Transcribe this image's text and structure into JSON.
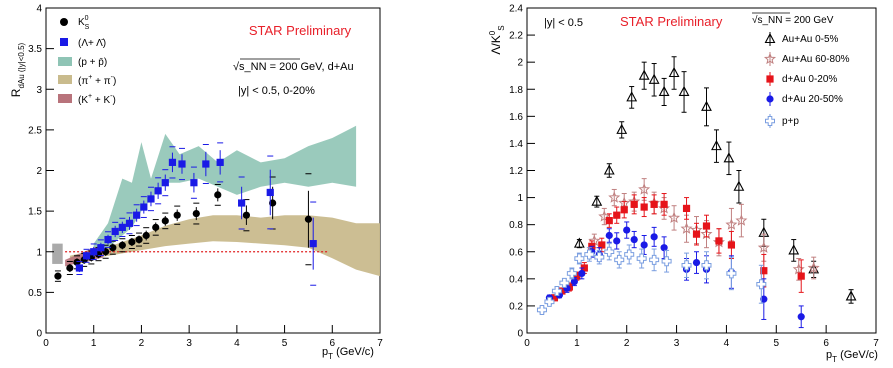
{
  "colors": {
    "star_red": "#e8202a",
    "kaon": "#000000",
    "lambda_blue": "#1a1ae6",
    "proton_band": "#8fc4b5",
    "pion_band": "#c9bb8d",
    "kaon_band": "#b8737b",
    "aa_central": "#000000",
    "aa_peripheral": "#c08080",
    "dau_central": "#e6141a",
    "dau_peripheral": "#1a1ae6",
    "pp": "#7a9ee0",
    "unity_line": "#e02020"
  },
  "chart_data": [
    {
      "type": "scatter",
      "title": "STAR Preliminary",
      "xlabel_main": "p",
      "xlabel_sub": "T",
      "xlabel_unit": " (GeV/c)",
      "ylabel_main": "R",
      "ylabel_sub": "dAu (|y|<0.5)",
      "xlim": [
        0,
        7
      ],
      "ylim": [
        0,
        4
      ],
      "xticks": [
        0,
        1,
        2,
        3,
        4,
        5,
        6,
        7
      ],
      "yticks": [
        0,
        0.5,
        1,
        1.5,
        2,
        2.5,
        3,
        3.5,
        4
      ],
      "annotations": [
        "√s_NN = 200 GeV, d+Au",
        "|y| < 0.5, 0-20%"
      ],
      "legend_position": "top-left",
      "reference_line_y": 1,
      "series": [
        {
          "name": "K⁰_S",
          "legend_main": "K",
          "legend_sup": "0",
          "legend_sub": "S",
          "marker": "circle",
          "color": "#000000",
          "x": [
            0.25,
            0.5,
            0.65,
            0.8,
            0.95,
            1.1,
            1.25,
            1.4,
            1.6,
            1.8,
            1.95,
            2.1,
            2.3,
            2.5,
            2.75,
            3.15,
            3.6,
            4.2,
            4.75,
            5.5
          ],
          "y": [
            0.7,
            0.8,
            0.87,
            0.9,
            0.93,
            0.97,
            1.0,
            1.05,
            1.08,
            1.12,
            1.15,
            1.2,
            1.3,
            1.38,
            1.45,
            1.47,
            1.7,
            1.45,
            1.6,
            1.4
          ],
          "err": [
            0.04,
            0.05,
            0.05,
            0.05,
            0.05,
            0.05,
            0.05,
            0.05,
            0.05,
            0.05,
            0.05,
            0.06,
            0.06,
            0.06,
            0.07,
            0.08,
            0.08,
            0.12,
            0.2,
            0.35
          ]
        },
        {
          "name": "(Λ+Λ̄)",
          "legend_main": "(Λ+ Λ̄)",
          "marker": "square",
          "color": "#1a1ae6",
          "x": [
            0.7,
            0.85,
            1.0,
            1.15,
            1.3,
            1.45,
            1.6,
            1.75,
            1.9,
            2.05,
            2.2,
            2.35,
            2.5,
            2.65,
            2.85,
            3.1,
            3.35,
            3.65,
            4.1,
            4.7,
            5.6
          ],
          "y": [
            0.8,
            0.95,
            1.0,
            1.05,
            1.15,
            1.25,
            1.3,
            1.35,
            1.45,
            1.55,
            1.65,
            1.75,
            1.85,
            2.1,
            2.08,
            1.85,
            2.08,
            2.1,
            1.6,
            1.73,
            1.1
          ],
          "err": [
            0.05,
            0.05,
            0.06,
            0.06,
            0.06,
            0.07,
            0.07,
            0.08,
            0.08,
            0.08,
            0.09,
            0.1,
            0.1,
            0.12,
            0.12,
            0.12,
            0.15,
            0.15,
            0.2,
            0.28,
            0.32
          ]
        },
        {
          "name": "(p + p̄)",
          "legend_main": "(p + p̄)",
          "marker": "band",
          "color": "#8fc4b5",
          "x": [
            1.0,
            1.3,
            1.6,
            1.8,
            2.0,
            2.2,
            2.5,
            2.8,
            3.2,
            3.6,
            4.0,
            4.5,
            5.0,
            5.5,
            6.0,
            6.5
          ],
          "y_low": [
            0.95,
            1.05,
            1.2,
            1.3,
            1.5,
            1.65,
            1.85,
            1.85,
            1.9,
            1.8,
            1.7,
            1.8,
            1.85,
            1.8,
            1.85,
            1.8
          ],
          "y_high": [
            1.1,
            1.35,
            1.9,
            1.85,
            2.35,
            1.9,
            2.45,
            2.2,
            2.3,
            2.1,
            2.25,
            2.1,
            2.15,
            2.3,
            2.4,
            2.55
          ]
        },
        {
          "name": "(π⁺ + π⁻)",
          "legend_main": "(π",
          "legend_sup": "+",
          "legend_rest": " + π",
          "legend_sup2": "-",
          "legend_end": ")",
          "marker": "band",
          "color": "#c9bb8d",
          "x": [
            0.5,
            1.0,
            1.5,
            2.0,
            2.5,
            3.0,
            3.5,
            4.0,
            4.5,
            5.0,
            5.5,
            6.0,
            6.5,
            7.0
          ],
          "y_low": [
            0.88,
            0.92,
            0.97,
            1.02,
            1.07,
            1.1,
            1.13,
            1.12,
            1.1,
            1.08,
            1.05,
            0.92,
            0.78,
            0.7
          ],
          "y_high": [
            0.95,
            1.02,
            1.1,
            1.2,
            1.32,
            1.4,
            1.45,
            1.45,
            1.42,
            1.45,
            1.45,
            1.42,
            1.35,
            1.35
          ]
        },
        {
          "name": "(K⁺ + K⁻)",
          "legend_main": "(K",
          "legend_sup": "+",
          "legend_rest": " + K",
          "legend_sup2": "-",
          "legend_end": ")",
          "marker": "band",
          "color": "#b8737b",
          "x": [
            0.4,
            0.6,
            0.8,
            1.0,
            1.2
          ],
          "y_low": [
            0.82,
            0.85,
            0.87,
            0.9,
            0.93
          ],
          "y_high": [
            0.9,
            0.95,
            1.0,
            1.05,
            1.08
          ]
        }
      ],
      "sys_box": {
        "x": [
          0.13,
          0.35
        ],
        "y": [
          0.85,
          1.1
        ],
        "color": "#aaaaaa"
      }
    },
    {
      "type": "scatter",
      "title": "STAR Preliminary",
      "xlabel_main": "p",
      "xlabel_sub": "T",
      "xlabel_unit": " (GeV/c)",
      "ylabel_main": "Λ/K",
      "ylabel_sup": "0",
      "ylabel_sub": "S",
      "xlim": [
        0,
        7
      ],
      "ylim": [
        0,
        2.4
      ],
      "xticks": [
        0,
        1,
        2,
        3,
        4,
        5,
        6,
        7
      ],
      "yticks": [
        0,
        0.2,
        0.4,
        0.6,
        0.8,
        1,
        1.2,
        1.4,
        1.6,
        1.8,
        2,
        2.2,
        2.4
      ],
      "annotations": [
        "|y| < 0.5",
        "√s_NN = 200 GeV"
      ],
      "legend_position": "top-right",
      "series": [
        {
          "name": "Au+Au 0-5%",
          "marker": "open-triangle",
          "color": "#000000",
          "x": [
            1.05,
            1.4,
            1.65,
            1.9,
            2.1,
            2.35,
            2.55,
            2.75,
            2.95,
            3.15,
            3.6,
            3.8,
            4.05,
            4.25,
            4.75,
            5.35,
            5.75,
            6.5
          ],
          "y": [
            0.66,
            0.97,
            1.2,
            1.5,
            1.74,
            1.9,
            1.87,
            1.78,
            1.92,
            1.78,
            1.67,
            1.38,
            1.29,
            1.08,
            0.74,
            0.61,
            0.47,
            0.27
          ],
          "err": [
            0.03,
            0.04,
            0.05,
            0.06,
            0.08,
            0.1,
            0.12,
            0.1,
            0.12,
            0.15,
            0.14,
            0.12,
            0.12,
            0.12,
            0.1,
            0.08,
            0.06,
            0.05
          ]
        },
        {
          "name": "Au+Au 60-80%",
          "marker": "open-star",
          "color": "#c08080",
          "x": [
            1.35,
            1.55,
            1.75,
            1.95,
            2.15,
            2.35,
            2.55,
            2.75,
            2.95,
            3.2,
            3.4,
            3.6,
            3.85,
            4.1,
            4.3,
            4.75,
            5.45,
            5.75
          ],
          "y": [
            0.68,
            0.86,
            1.0,
            0.96,
            0.97,
            1.06,
            0.96,
            0.92,
            0.85,
            0.77,
            0.76,
            0.73,
            0.67,
            0.8,
            0.83,
            0.63,
            0.47,
            0.48
          ],
          "err": [
            0.05,
            0.06,
            0.06,
            0.07,
            0.07,
            0.08,
            0.08,
            0.08,
            0.09,
            0.1,
            0.1,
            0.1,
            0.1,
            0.12,
            0.12,
            0.1,
            0.08,
            0.08
          ]
        },
        {
          "name": "d+Au 0-20%",
          "marker": "square",
          "color": "#e6141a",
          "x": [
            0.55,
            0.7,
            0.85,
            1.0,
            1.15,
            1.3,
            1.5,
            1.65,
            1.8,
            1.95,
            2.15,
            2.35,
            2.55,
            2.75,
            3.2,
            3.4,
            3.6,
            3.85,
            4.1,
            4.75,
            5.5
          ],
          "y": [
            0.26,
            0.31,
            0.34,
            0.42,
            0.48,
            0.64,
            0.65,
            0.83,
            0.87,
            0.91,
            0.95,
            0.93,
            0.95,
            0.95,
            0.92,
            0.73,
            0.79,
            0.68,
            0.65,
            0.46,
            0.42
          ],
          "err": [
            0.02,
            0.02,
            0.03,
            0.03,
            0.04,
            0.04,
            0.05,
            0.05,
            0.06,
            0.06,
            0.07,
            0.07,
            0.07,
            0.08,
            0.08,
            0.08,
            0.08,
            0.09,
            0.1,
            0.12,
            0.12
          ]
        },
        {
          "name": "d+Au 20-50%",
          "marker": "circle",
          "color": "#1a1ae6",
          "x": [
            0.45,
            0.65,
            0.8,
            0.95,
            1.1,
            1.3,
            1.45,
            1.65,
            1.8,
            2.0,
            2.15,
            2.35,
            2.55,
            2.75,
            3.2,
            3.4,
            3.6,
            4.1,
            4.75,
            5.5
          ],
          "y": [
            0.26,
            0.28,
            0.33,
            0.38,
            0.44,
            0.6,
            0.58,
            0.72,
            0.68,
            0.76,
            0.69,
            0.65,
            0.71,
            0.63,
            0.47,
            0.52,
            0.47,
            0.45,
            0.25,
            0.12
          ],
          "err": [
            0.02,
            0.02,
            0.03,
            0.03,
            0.04,
            0.04,
            0.05,
            0.05,
            0.06,
            0.06,
            0.06,
            0.07,
            0.07,
            0.08,
            0.08,
            0.08,
            0.1,
            0.12,
            0.15,
            0.08
          ]
        },
        {
          "name": "p+p",
          "marker": "open-cross",
          "color": "#7a9ee0",
          "x": [
            0.3,
            0.45,
            0.6,
            0.75,
            0.9,
            1.05,
            1.25,
            1.45,
            1.65,
            1.85,
            2.05,
            2.3,
            2.55,
            2.8,
            3.2,
            3.6,
            4.1,
            4.7
          ],
          "y": [
            0.17,
            0.23,
            0.31,
            0.37,
            0.44,
            0.55,
            0.58,
            0.56,
            0.6,
            0.54,
            0.58,
            0.55,
            0.54,
            0.53,
            0.5,
            0.5,
            0.44,
            0.36
          ],
          "err": [
            0.02,
            0.02,
            0.03,
            0.03,
            0.04,
            0.04,
            0.05,
            0.05,
            0.06,
            0.06,
            0.07,
            0.07,
            0.08,
            0.08,
            0.09,
            0.1,
            0.12,
            0.14
          ]
        }
      ]
    }
  ]
}
